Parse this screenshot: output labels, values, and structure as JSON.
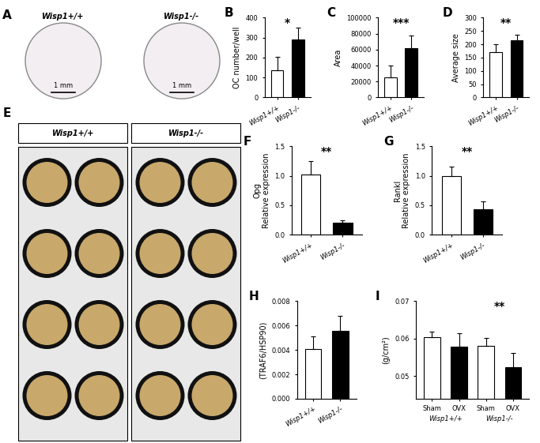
{
  "chart_data": [
    {
      "type": "bar",
      "title": "B",
      "categories": [
        "Wisp1+/+",
        "Wisp1-/-"
      ],
      "ylabel": "OC number/well",
      "values": [
        135,
        290
      ],
      "errors": [
        70,
        60
      ],
      "colors": [
        "#ffffff",
        "#000000"
      ],
      "ylim": [
        0,
        400
      ],
      "yticks": [
        0,
        100,
        200,
        300,
        400
      ],
      "annotation": "*"
    },
    {
      "type": "bar",
      "title": "C",
      "categories": [
        "Wisp1+/+",
        "Wisp1-/-"
      ],
      "ylabel": "Area",
      "values": [
        25000,
        62000
      ],
      "errors": [
        15000,
        16000
      ],
      "colors": [
        "#ffffff",
        "#000000"
      ],
      "ylim": [
        0,
        100000
      ],
      "yticks": [
        0,
        20000,
        40000,
        60000,
        80000,
        100000
      ],
      "annotation": "***"
    },
    {
      "type": "bar",
      "title": "D",
      "categories": [
        "Wisp1+/+",
        "Wisp1-/-"
      ],
      "ylabel": "Average size",
      "values": [
        172,
        215
      ],
      "errors": [
        28,
        20
      ],
      "colors": [
        "#ffffff",
        "#000000"
      ],
      "ylim": [
        0,
        300
      ],
      "yticks": [
        0,
        50,
        100,
        150,
        200,
        250,
        300
      ],
      "annotation": "**"
    },
    {
      "type": "bar",
      "title": "F",
      "categories": [
        "Wisp1+/+",
        "Wisp1-/-"
      ],
      "ylabel": "Opg\nRelative expression",
      "values": [
        1.02,
        0.21
      ],
      "errors": [
        0.23,
        0.03
      ],
      "colors": [
        "#ffffff",
        "#000000"
      ],
      "ylim": [
        0,
        1.5
      ],
      "yticks": [
        {
          "value": 0,
          "label": "0.0"
        },
        0.5,
        {
          "value": 1,
          "label": "1.0"
        },
        1.5
      ],
      "annotation": "**"
    },
    {
      "type": "bar",
      "title": "G",
      "categories": [
        "Wisp1+/+",
        "Wisp1-/-"
      ],
      "ylabel": "Rankl\nRelative expression",
      "values": [
        1.0,
        0.43
      ],
      "errors": [
        0.15,
        0.13
      ],
      "colors": [
        "#ffffff",
        "#000000"
      ],
      "ylim": [
        0,
        1.5
      ],
      "yticks": [
        {
          "value": 0,
          "label": "0.0"
        },
        0.5,
        {
          "value": 1,
          "label": "1.0"
        },
        1.5
      ],
      "annotation": "**"
    },
    {
      "type": "bar",
      "title": "H",
      "categories": [
        "Wisp1+/+",
        "Wisp1-/-"
      ],
      "ylabel": "(TRAF6/HSP90)",
      "values": [
        0.0041,
        0.0056
      ],
      "errors": [
        0.001,
        0.0012
      ],
      "colors": [
        "#ffffff",
        "#000000"
      ],
      "ylim": [
        0,
        0.008
      ],
      "yticks": [
        {
          "value": 0,
          "label": "0.000"
        },
        0.002,
        0.004,
        0.006,
        0.008
      ]
    },
    {
      "type": "bar",
      "title": "I",
      "categories": [
        "Sham",
        "OVX",
        "Sham",
        "OVX"
      ],
      "ylabel": "(g/cm²)",
      "groups": [
        "Wisp1+/+",
        "Wisp1-/-"
      ],
      "values": [
        0.0605,
        0.0578,
        0.0581,
        0.0524
      ],
      "errors": [
        0.0013,
        0.0036,
        0.0021,
        0.0038
      ],
      "colors": [
        "#ffffff",
        "#000000",
        "#ffffff",
        "#000000"
      ],
      "ylim": [
        0.044,
        0.07
      ],
      "yticks": [
        0.05,
        0.06,
        0.07
      ],
      "annotation": "**"
    }
  ],
  "images": [
    {
      "title": "A",
      "labels": [
        "Wisp1+/+",
        "Wisp1-/-"
      ],
      "scale_bar": "1 mm"
    },
    {
      "title": "E",
      "labels": [
        "Wisp1+/+",
        "Wisp1-/-"
      ]
    }
  ]
}
